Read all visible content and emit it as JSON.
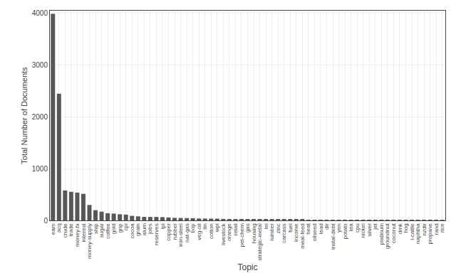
{
  "chart_data": {
    "type": "bar",
    "xlabel": "Topic",
    "ylabel": "Total Number of Documents",
    "categories": [
      "earn",
      "acq",
      "crude",
      "trade",
      "money-fx",
      "interest",
      "money-supply",
      "ship",
      "sugar",
      "coffee",
      "gold",
      "gnp",
      "cpi",
      "cocoa",
      "grain",
      "alum",
      "jobs",
      "reserves",
      "ipi",
      "copper",
      "rubber",
      "iron-steel",
      "nat-gas",
      "bop",
      "veg-oil",
      "tin",
      "cotton",
      "wpi",
      "livestock",
      "orange",
      "retail",
      "pet-chem",
      "gas",
      "housing",
      "strategic-metal",
      "lei",
      "lumber",
      "zinc",
      "carcass",
      "fuel",
      "income",
      "meal-feed",
      "heat",
      "oilseed",
      "lead",
      "dir",
      "instal-debt",
      "yen",
      "potato",
      "tea",
      "cpu",
      "nickel",
      "silver",
      "jet",
      "platinum",
      "groundnut",
      "coconut",
      "dmk",
      "hog",
      "l-cattle",
      "naphtha",
      "nzdir",
      "propane",
      "rand",
      "rice"
    ],
    "values": [
      3987,
      2448,
      578,
      552,
      537,
      513,
      298,
      197,
      169,
      139,
      132,
      118,
      112,
      88,
      78,
      68,
      67,
      67,
      63,
      57,
      49,
      47,
      45,
      43,
      37,
      36,
      34,
      34,
      29,
      27,
      25,
      24,
      23,
      21,
      20,
      19,
      17,
      17,
      16,
      15,
      14,
      14,
      13,
      13,
      12,
      12,
      11,
      11,
      10,
      10,
      9,
      9,
      9,
      8,
      7,
      6,
      6,
      6,
      6,
      6,
      5,
      5,
      4,
      4,
      4
    ],
    "color": "#575757",
    "ylim": [
      0,
      4050
    ],
    "yticks": [
      0,
      1000,
      2000,
      3000,
      4000
    ],
    "grid": true
  }
}
